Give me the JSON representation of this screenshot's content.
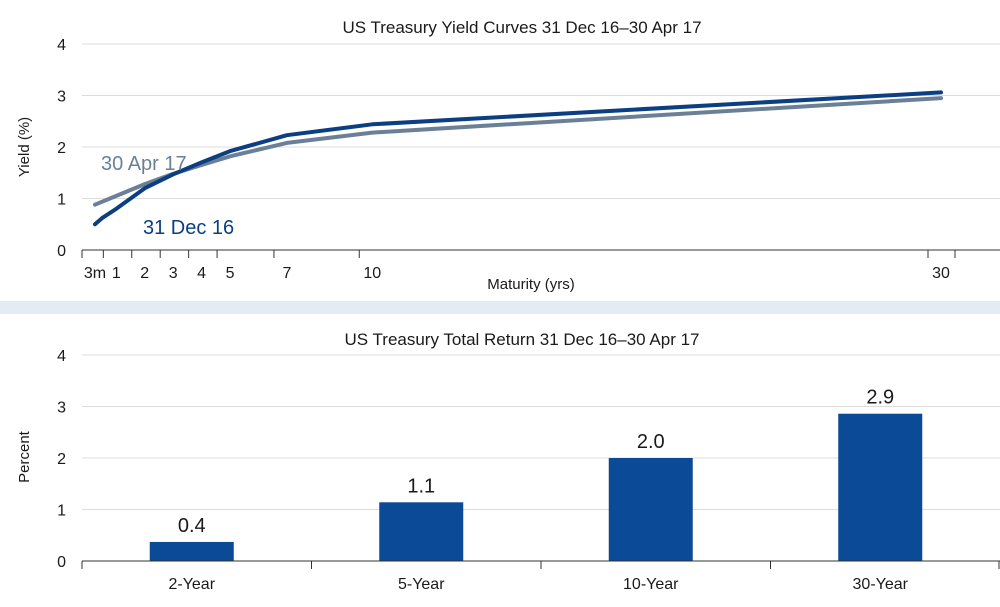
{
  "chart_data": [
    {
      "type": "line",
      "title": "US Treasury Yield Curves 31 Dec 16–30 Apr 17",
      "xlabel": "Maturity (yrs)",
      "ylabel": "Yield (%)",
      "ylim": [
        0,
        4
      ],
      "yticks": [
        0,
        1,
        2,
        3,
        4
      ],
      "grid": true,
      "x_ticks": [
        {
          "value": 0.25,
          "label": "3m"
        },
        {
          "value": 1,
          "label": "1"
        },
        {
          "value": 2,
          "label": "2"
        },
        {
          "value": 3,
          "label": "3"
        },
        {
          "value": 4,
          "label": "4"
        },
        {
          "value": 5,
          "label": "5"
        },
        {
          "value": 7,
          "label": "7"
        },
        {
          "value": 10,
          "label": "10"
        },
        {
          "value": 30,
          "label": "30"
        }
      ],
      "series": [
        {
          "name": "30 Apr 17",
          "color": "#6b8096",
          "x": [
            0.25,
            1,
            2,
            3,
            4,
            5,
            7,
            10,
            30
          ],
          "values": [
            0.88,
            1.05,
            1.28,
            1.48,
            1.65,
            1.82,
            2.08,
            2.28,
            2.95
          ]
        },
        {
          "name": "31 Dec 16",
          "color": "#0b3f82",
          "x": [
            0.25,
            0.5,
            1,
            2,
            3,
            4,
            5,
            7,
            10,
            30
          ],
          "values": [
            0.5,
            0.62,
            0.8,
            1.2,
            1.47,
            1.7,
            1.92,
            2.23,
            2.44,
            3.06
          ]
        }
      ]
    },
    {
      "type": "bar",
      "title": "US Treasury Total Return 31 Dec 16–30 Apr 17",
      "xlabel": "",
      "ylabel": "Percent",
      "ylim": [
        0,
        4
      ],
      "yticks": [
        0,
        1,
        2,
        3,
        4
      ],
      "grid": true,
      "categories": [
        "2-Year",
        "5-Year",
        "10-Year",
        "30-Year"
      ],
      "values": [
        0.37,
        1.14,
        2.0,
        2.86
      ],
      "data_labels": [
        "0.4",
        "1.1",
        "2.0",
        "2.9"
      ],
      "color": "#0b4a96"
    }
  ],
  "colors": {
    "grid": "#dcdcdc",
    "divider": "#e3ebf3",
    "axis": "#333333"
  }
}
